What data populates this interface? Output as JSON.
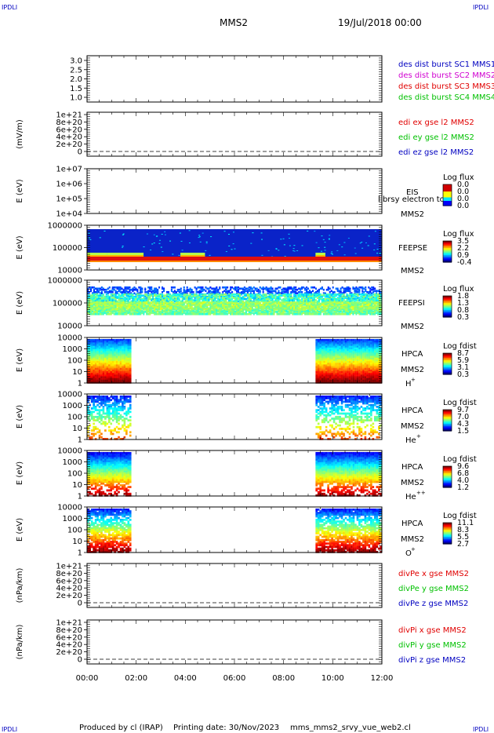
{
  "header": {
    "corner_left": "IPDLI",
    "corner_right": "IPDLI",
    "corner_bottom_left": "IPDLI",
    "corner_bottom_right": "IPDLI",
    "spacecraft": "MMS2",
    "date_time": "19/Jul/2018 00:00"
  },
  "footer": {
    "produced_by": "Produced by cl (IRAP)",
    "printing_date": "Printing date: 30/Nov/2023",
    "filename": "mms_mms2_srvy_vue_web2.cl"
  },
  "colors": {
    "red": "#e00000",
    "magenta": "#d000d0",
    "green": "#00c000",
    "blue": "#0000c0",
    "spectro_blue": "#0a23c8"
  },
  "chart_data": [
    {
      "type": "line",
      "id": "panel1",
      "ylabel": "",
      "yticks": [
        "3.0",
        "2.5",
        "2.0",
        "1.5",
        "1.0"
      ],
      "ylim": [
        0.8,
        3.2
      ],
      "legend": [
        {
          "label": "des dist burst SC1 MMS1",
          "color": "#0000c0"
        },
        {
          "label": "des dist burst SC2 MMS2",
          "color": "#d000d0"
        },
        {
          "label": "des dist burst SC3 MMS3",
          "color": "#e00000"
        },
        {
          "label": "des dist burst SC4 MMS4",
          "color": "#00c000"
        }
      ]
    },
    {
      "type": "line",
      "id": "panel2",
      "ylabel": "(mV/m)",
      "yticks": [
        "1e+21",
        "8e+20",
        "6e+20",
        "4e+20",
        "2e+20",
        "0"
      ],
      "ylim": [
        0,
        1e+21
      ],
      "legend": [
        {
          "label": "edi ex gse l2 MMS2",
          "color": "#e00000"
        },
        {
          "label": "edi ey gse l2 MMS2",
          "color": "#00c000"
        },
        {
          "label": "edi ez gse l2 MMS2",
          "color": "#0000c0"
        }
      ]
    },
    {
      "type": "heatmap",
      "id": "panel3",
      "ylabel": "E (eV)",
      "yticks": [
        "1e+07",
        "1e+06",
        "1e+05",
        "1e+04"
      ],
      "ylim": [
        10000.0,
        10000000.0
      ],
      "instrument": "EIS",
      "instrument_sub": "MMS2",
      "overlay_label": "l brsy electron to",
      "colorbar_title": "Log flux",
      "colorbar_ticks": [
        "0.0",
        "0.0",
        "0.0",
        "0.0"
      ]
    },
    {
      "type": "heatmap",
      "id": "panel4",
      "ylabel": "E (eV)",
      "yticks": [
        "1000000",
        "100000",
        "10000"
      ],
      "ylim": [
        10000.0,
        1000000.0
      ],
      "instrument": "FEEPSE",
      "instrument_sub": "MMS2",
      "colorbar_title": "Log flux",
      "colorbar_ticks": [
        "3.5",
        "2.2",
        "0.9",
        "-0.4"
      ]
    },
    {
      "type": "heatmap",
      "id": "panel5",
      "ylabel": "E (eV)",
      "yticks": [
        "1000000",
        "100000",
        "10000"
      ],
      "ylim": [
        10000.0,
        1000000.0
      ],
      "instrument": "FEEPSI",
      "instrument_sub": "MMS2",
      "colorbar_title": "Log flux",
      "colorbar_ticks": [
        "1.8",
        "1.3",
        "0.8",
        "0.3"
      ]
    },
    {
      "type": "heatmap",
      "id": "panel6",
      "ylabel": "E (eV)",
      "yticks": [
        "10000",
        "1000",
        "100",
        "10",
        "1"
      ],
      "ylim": [
        1,
        10000.0
      ],
      "instrument": "HPCA",
      "instrument_sub": "MMS2",
      "species": "H",
      "species_sup": "+",
      "colorbar_title": "Log fdist",
      "colorbar_ticks": [
        "8.7",
        "5.9",
        "3.1",
        "0.3"
      ]
    },
    {
      "type": "heatmap",
      "id": "panel7",
      "ylabel": "E (eV)",
      "yticks": [
        "10000",
        "1000",
        "100",
        "10",
        "1"
      ],
      "ylim": [
        1,
        10000.0
      ],
      "instrument": "HPCA",
      "instrument_sub": "MMS2",
      "species": "He",
      "species_sup": "+",
      "colorbar_title": "Log fdist",
      "colorbar_ticks": [
        "9.7",
        "7.0",
        "4.3",
        "1.5"
      ]
    },
    {
      "type": "heatmap",
      "id": "panel8",
      "ylabel": "E (eV)",
      "yticks": [
        "10000",
        "1000",
        "100",
        "10",
        "1"
      ],
      "ylim": [
        1,
        10000.0
      ],
      "instrument": "HPCA",
      "instrument_sub": "MMS2",
      "species": "He",
      "species_sup": "++",
      "colorbar_title": "Log fdist",
      "colorbar_ticks": [
        "9.6",
        "6.8",
        "4.0",
        "1.2"
      ]
    },
    {
      "type": "heatmap",
      "id": "panel9",
      "ylabel": "E (eV)",
      "yticks": [
        "10000",
        "1000",
        "100",
        "10",
        "1"
      ],
      "ylim": [
        1,
        10000.0
      ],
      "instrument": "HPCA",
      "instrument_sub": "MMS2",
      "species": "O",
      "species_sup": "+",
      "colorbar_title": "Log fdist",
      "colorbar_ticks": [
        "11.1",
        "8.3",
        "5.5",
        "2.7"
      ]
    },
    {
      "type": "line",
      "id": "panel10",
      "ylabel": "(nPa/km)",
      "yticks": [
        "1e+21",
        "8e+20",
        "6e+20",
        "4e+20",
        "2e+20",
        "0"
      ],
      "ylim": [
        0,
        1e+21
      ],
      "legend": [
        {
          "label": "divPe x gse MMS2",
          "color": "#e00000"
        },
        {
          "label": "divPe y gse MMS2",
          "color": "#00c000"
        },
        {
          "label": "divPe z gse MMS2",
          "color": "#0000c0"
        }
      ]
    },
    {
      "type": "line",
      "id": "panel11",
      "ylabel": "(nPa/km)",
      "yticks": [
        "1e+21",
        "8e+20",
        "6e+20",
        "4e+20",
        "2e+20",
        "0"
      ],
      "ylim": [
        0,
        1e+21
      ],
      "legend": [
        {
          "label": "divPi x gse MMS2",
          "color": "#e00000"
        },
        {
          "label": "divPi y gse MMS2",
          "color": "#00c000"
        },
        {
          "label": "divPi z gse MMS2",
          "color": "#0000c0"
        }
      ]
    }
  ],
  "xaxis": {
    "ticks": [
      "00:00",
      "02:00",
      "04:00",
      "06:00",
      "08:00",
      "10:00",
      "12:00"
    ]
  }
}
